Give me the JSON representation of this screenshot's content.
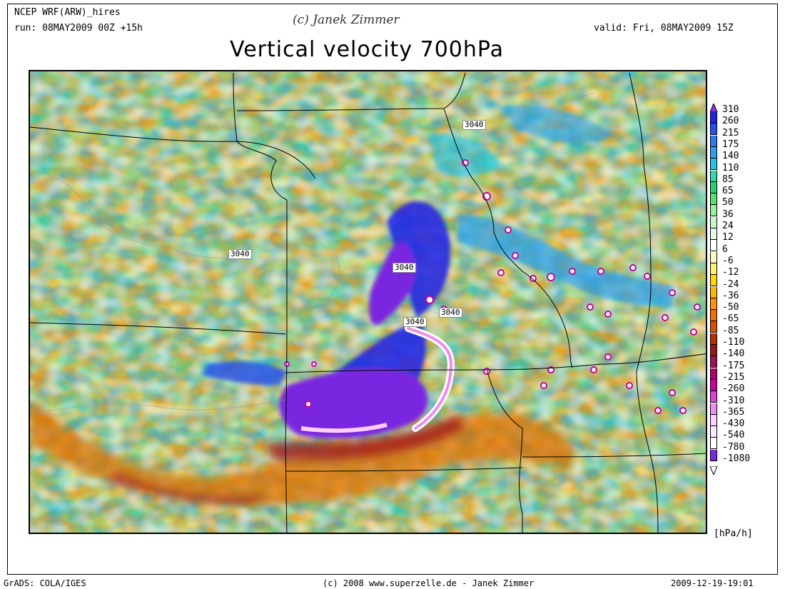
{
  "header": {
    "model": "NCEP WRF(ARW)_hires",
    "run": "run: 08MAY2009 00Z +15h",
    "credit": "(c) Janek Zimmer",
    "valid": "valid: Fri, 08MAY2009 15Z",
    "title": "Vertical velocity 700hPa"
  },
  "contour_labels": [
    "3040",
    "3040",
    "3040",
    "3040",
    "3040"
  ],
  "legend": {
    "levels": [
      "310",
      "260",
      "215",
      "175",
      "140",
      "110",
      "85",
      "65",
      "50",
      "36",
      "24",
      "12",
      "6",
      "-6",
      "-12",
      "-24",
      "-36",
      "-50",
      "-65",
      "-85",
      "-110",
      "-140",
      "-175",
      "-215",
      "-260",
      "-310",
      "-365",
      "-430",
      "-540",
      "-780",
      "-1080"
    ],
    "colors": [
      "#7a28e0",
      "#2020e8",
      "#2850f0",
      "#2e78f2",
      "#2aa0f0",
      "#22c3e8",
      "#30d8b0",
      "#30d070",
      "#58e070",
      "#9af09a",
      "#c8f8c8",
      "#e8fce8",
      "#ffffff",
      "#fffbc0",
      "#fff070",
      "#ffd800",
      "#ffb400",
      "#ff9200",
      "#f07000",
      "#d85000",
      "#b83000",
      "#981818",
      "#a01050",
      "#b00070",
      "#c800a0",
      "#e040d8",
      "#f08cf0",
      "#ffd0ff",
      "#ffe8ff",
      "#ffffff",
      "#7a28e0"
    ],
    "top_arrow_color": "#8a30e8",
    "units": "[hPa/h]"
  },
  "footer": {
    "left": "GrADS: COLA/IGES",
    "center": "(c) 2008 www.superzelle.de - Janek Zimmer",
    "right": "2009-12-19-19:01"
  }
}
